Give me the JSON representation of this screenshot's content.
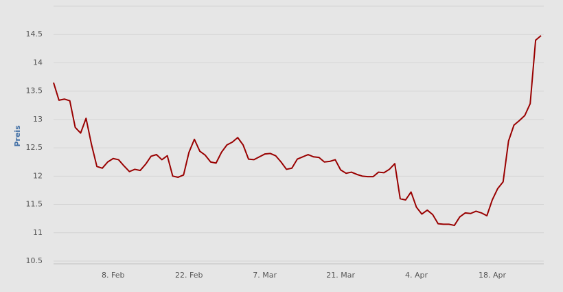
{
  "chart_data": {
    "type": "line",
    "y_label": "Preis",
    "color": "#990000",
    "grid": true,
    "ylim": [
      10.5,
      15
    ],
    "yticks": [
      10.5,
      11,
      11.5,
      12,
      12.5,
      13,
      13.5,
      14,
      14.5
    ],
    "xticks": [
      "8. Feb",
      "22. Feb",
      "7. Mar",
      "21. Mar",
      "4. Apr",
      "18. Apr"
    ],
    "x": [
      "28. Jan",
      "29. Jan",
      "30. Jan",
      "31. Jan",
      "1. Feb",
      "2. Feb",
      "3. Feb",
      "4. Feb",
      "5. Feb",
      "6. Feb",
      "7. Feb",
      "8. Feb",
      "9. Feb",
      "10. Feb",
      "11. Feb",
      "12. Feb",
      "13. Feb",
      "14. Feb",
      "15. Feb",
      "16. Feb",
      "17. Feb",
      "18. Feb",
      "19. Feb",
      "20. Feb",
      "21. Feb",
      "22. Feb",
      "23. Feb",
      "24. Feb",
      "25. Feb",
      "26. Feb",
      "27. Feb",
      "28. Feb",
      "29. Feb",
      "1. Mar",
      "2. Mar",
      "3. Mar",
      "4. Mar",
      "5. Mar",
      "6. Mar",
      "7. Mar",
      "8. Mar",
      "9. Mar",
      "10. Mar",
      "11. Mar",
      "12. Mar",
      "13. Mar",
      "14. Mar",
      "15. Mar",
      "16. Mar",
      "17. Mar",
      "18. Mar",
      "19. Mar",
      "20. Mar",
      "21. Mar",
      "22. Mar",
      "23. Mar",
      "24. Mar",
      "25. Mar",
      "26. Mar",
      "27. Mar",
      "28. Mar",
      "29. Mar",
      "30. Mar",
      "31. Mar",
      "1. Apr",
      "2. Apr",
      "3. Apr",
      "4. Apr",
      "5. Apr",
      "6. Apr",
      "7. Apr",
      "8. Apr",
      "9. Apr",
      "10. Apr",
      "11. Apr",
      "12. Apr",
      "13. Apr",
      "14. Apr",
      "15. Apr",
      "16. Apr",
      "17. Apr",
      "18. Apr",
      "19. Apr",
      "20. Apr",
      "21. Apr",
      "22. Apr",
      "23. Apr",
      "24. Apr",
      "25. Apr",
      "26. Apr",
      "27. Apr"
    ],
    "values": [
      13.65,
      13.34,
      13.36,
      13.33,
      12.86,
      12.76,
      13.02,
      12.56,
      12.17,
      12.14,
      12.25,
      12.31,
      12.29,
      12.18,
      12.08,
      12.12,
      12.1,
      12.21,
      12.35,
      12.38,
      12.29,
      12.36,
      12.0,
      11.98,
      12.02,
      12.42,
      12.65,
      12.44,
      12.37,
      12.25,
      12.23,
      12.42,
      12.55,
      12.6,
      12.68,
      12.55,
      12.3,
      12.29,
      12.34,
      12.39,
      12.4,
      12.36,
      12.25,
      12.12,
      12.14,
      12.3,
      12.34,
      12.38,
      12.34,
      12.33,
      12.25,
      12.26,
      12.29,
      12.11,
      12.05,
      12.07,
      12.03,
      12.0,
      11.99,
      11.99,
      12.07,
      12.06,
      12.12,
      12.22,
      11.6,
      11.58,
      11.72,
      11.45,
      11.33,
      11.4,
      11.32,
      11.16,
      11.15,
      11.15,
      11.13,
      11.28,
      11.35,
      11.34,
      11.38,
      11.35,
      11.3,
      11.58,
      11.78,
      11.9,
      12.62,
      12.9,
      12.98,
      13.07,
      13.28,
      14.4,
      14.48
    ]
  }
}
